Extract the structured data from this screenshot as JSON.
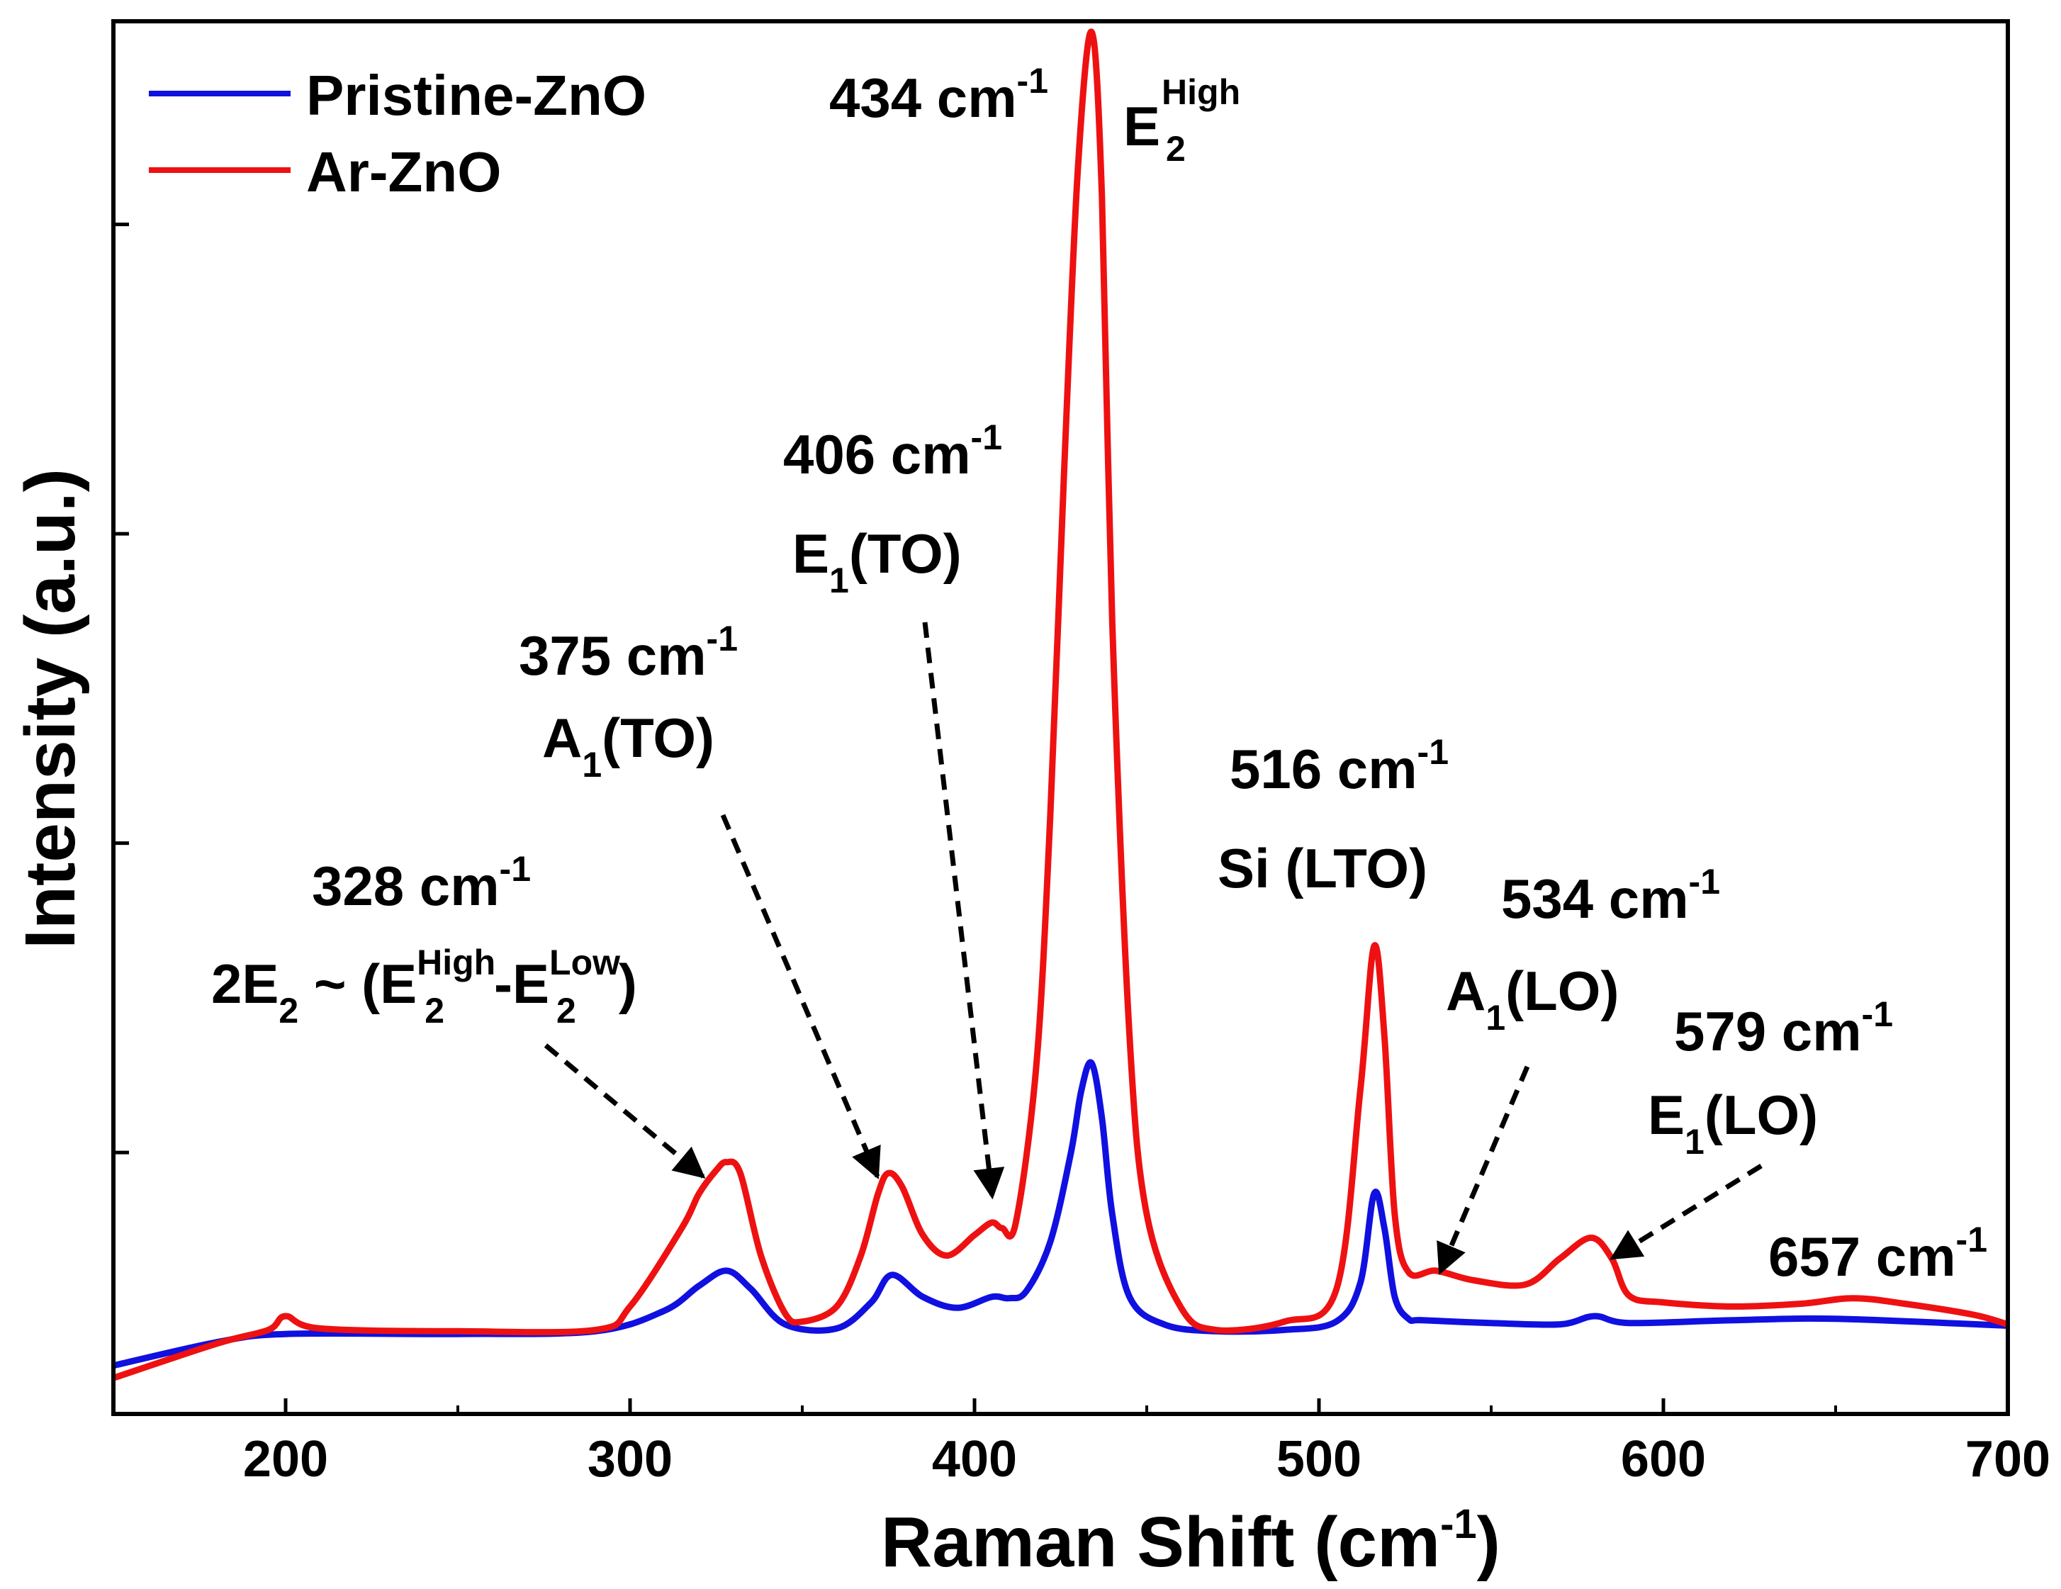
{
  "chart_data": {
    "type": "line",
    "title": "",
    "xlabel": "Raman Shift (cm",
    "xlabel_sup": "-1",
    "xlabel_close": ")",
    "ylabel": "Intensity (a.u.)",
    "xlim": [
      150,
      700
    ],
    "ylim": [
      0,
      100
    ],
    "xticks": [
      200,
      300,
      400,
      500,
      600,
      700
    ],
    "yticks_unlabeled": [
      18.5,
      41,
      63.5,
      86
    ],
    "legend_position": "top-left",
    "colors": {
      "pristine": "#1010e0",
      "ar": "#ee1111"
    },
    "series": [
      {
        "name": "Pristine-ZnO",
        "color": "#1010e0",
        "x": [
          150,
          180,
          200,
          250,
          290,
          310,
          320,
          328,
          335,
          345,
          360,
          370,
          376,
          385,
          395,
          405,
          410,
          415,
          422,
          428,
          431,
          434,
          437,
          440,
          445,
          455,
          470,
          490,
          505,
          512,
          516,
          519,
          522,
          526,
          530,
          550,
          570,
          580,
          590,
          620,
          650,
          700
        ],
        "y": [
          3.0,
          4.7,
          5.3,
          5.3,
          5.5,
          7.0,
          8.8,
          9.9,
          8.6,
          6.0,
          5.7,
          7.6,
          9.6,
          8.0,
          7.2,
          8.0,
          7.9,
          8.4,
          12.0,
          18.5,
          23.0,
          25.0,
          21.0,
          14.0,
          8.0,
          6.0,
          5.5,
          5.6,
          6.2,
          9.0,
          15.5,
          13.0,
          8.0,
          6.4,
          6.3,
          6.1,
          6.0,
          6.6,
          6.1,
          6.3,
          6.4,
          5.9
        ]
      },
      {
        "name": "Ar-ZnO",
        "color": "#ee1111",
        "x": [
          150,
          180,
          195,
          200,
          210,
          250,
          290,
          300,
          315,
          320,
          325,
          328,
          332,
          338,
          345,
          350,
          360,
          367,
          372,
          375,
          379,
          385,
          392,
          400,
          405,
          408,
          412,
          418,
          422,
          426,
          430,
          434,
          437,
          440,
          445,
          450,
          460,
          470,
          490,
          505,
          512,
          516,
          519,
          522,
          526,
          534,
          545,
          560,
          570,
          579,
          585,
          590,
          600,
          620,
          640,
          655,
          670,
          690,
          700
        ],
        "y": [
          2.1,
          4.6,
          5.6,
          6.6,
          5.7,
          5.5,
          5.6,
          7.3,
          13.0,
          15.5,
          17.2,
          17.8,
          17.0,
          11.0,
          6.8,
          6.2,
          7.3,
          11.0,
          15.5,
          17.0,
          16.0,
          12.5,
          11.0,
          12.5,
          13.4,
          13.0,
          13.4,
          25.0,
          43.0,
          68.0,
          90.0,
          100.0,
          88.0,
          57.0,
          27.0,
          14.0,
          7.2,
          5.6,
          6.2,
          8.5,
          23.0,
          33.5,
          27.0,
          14.0,
          9.8,
          9.9,
          9.2,
          8.9,
          10.8,
          12.3,
          10.8,
          8.1,
          7.6,
          7.3,
          7.5,
          7.9,
          7.5,
          6.7,
          6.0
        ]
      }
    ],
    "annotations": [
      {
        "id": "a434",
        "wavenumber": "434 cm",
        "sup": "-1",
        "mode": "E",
        "mode_sub": "2",
        "mode_sup": "High",
        "mode_tail": ""
      },
      {
        "id": "a406",
        "wavenumber": "406 cm",
        "sup": "-1",
        "mode": "E",
        "mode_sub": "1",
        "mode_tail": "(TO)"
      },
      {
        "id": "a375",
        "wavenumber": "375 cm",
        "sup": "-1",
        "mode": "A",
        "mode_sub": "1",
        "mode_tail": "(TO)"
      },
      {
        "id": "a328",
        "wavenumber": "328 cm",
        "sup": "-1",
        "mode_prefix": "2E",
        "mode_prefix_sub": "2",
        "mode_mid": " ~ (E",
        "mode_mid_sup": "High",
        "mode_mid_sub": "2",
        "mode_dash": "-E",
        "mode_dash_sup": "Low",
        "mode_dash_sub": "2",
        "mode_close": ")"
      },
      {
        "id": "a516",
        "wavenumber": "516 cm",
        "sup": "-1",
        "mode_text": "Si (LTO)"
      },
      {
        "id": "a534",
        "wavenumber": "534 cm",
        "sup": "-1",
        "mode": "A",
        "mode_sub": "1",
        "mode_tail": "(LO)"
      },
      {
        "id": "a579",
        "wavenumber": "579 cm",
        "sup": "-1",
        "mode": "E",
        "mode_sub": "1",
        "mode_tail": "(LO)"
      },
      {
        "id": "a657",
        "wavenumber": "657 cm",
        "sup": "-1"
      }
    ]
  }
}
